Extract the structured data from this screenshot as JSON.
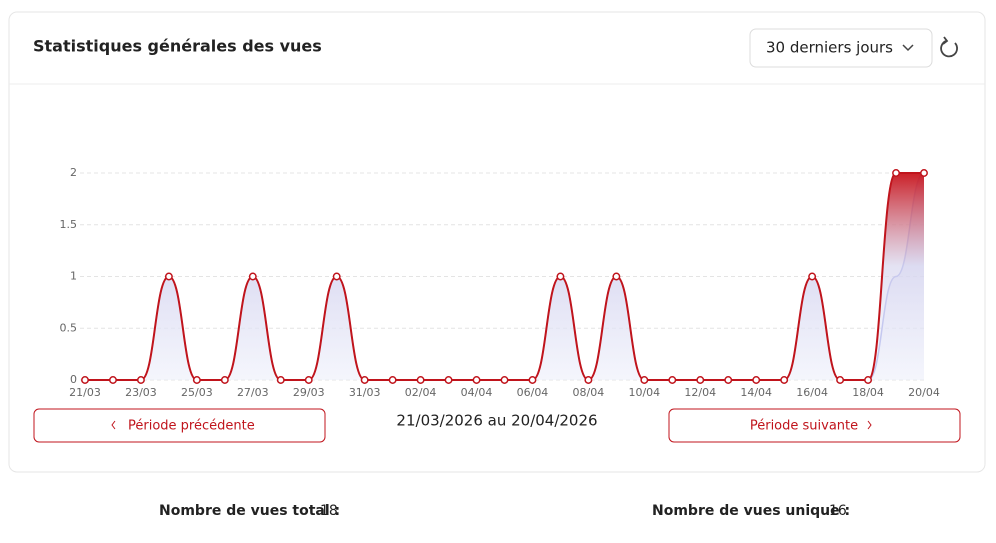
{
  "header": {
    "title": "Statistiques générales des vues",
    "period_select": "30 derniers jours"
  },
  "chart_data": {
    "type": "line",
    "categories": [
      "21/03",
      null,
      "23/03",
      null,
      "25/03",
      null,
      "27/03",
      null,
      "29/03",
      null,
      "31/03",
      null,
      "02/04",
      null,
      "04/04",
      null,
      "06/04",
      null,
      "08/04",
      null,
      "10/04",
      null,
      "12/04",
      null,
      "14/04",
      null,
      "16/04",
      null,
      "18/04",
      null,
      "20/04"
    ],
    "series": [
      {
        "color": "#a3aaea",
        "values": [
          0,
          0,
          0,
          1,
          0,
          0,
          1,
          0,
          0,
          1,
          0,
          0,
          0,
          0,
          0,
          0,
          0,
          1,
          0,
          1,
          0,
          0,
          0,
          0,
          0,
          0,
          1,
          0,
          0,
          1,
          2
        ]
      },
      {
        "color": "#c0141c",
        "values": [
          0,
          0,
          0,
          1,
          0,
          0,
          1,
          0,
          0,
          1,
          0,
          0,
          0,
          0,
          0,
          0,
          0,
          1,
          0,
          1,
          0,
          0,
          0,
          0,
          0,
          0,
          1,
          0,
          0,
          2,
          2
        ]
      }
    ],
    "ylim": [
      0,
      2
    ],
    "yticks": [
      0,
      0.5,
      1,
      1.5,
      2
    ],
    "grid": true
  },
  "navigation": {
    "previous": "Période précédente",
    "range": "21/03/2026 au 20/04/2026",
    "next": "Période suivante"
  },
  "stats": [
    {
      "label": "Nombre de vues total :",
      "value": 18
    },
    {
      "label": "Nombre de vues unique :",
      "value": 16
    }
  ]
}
